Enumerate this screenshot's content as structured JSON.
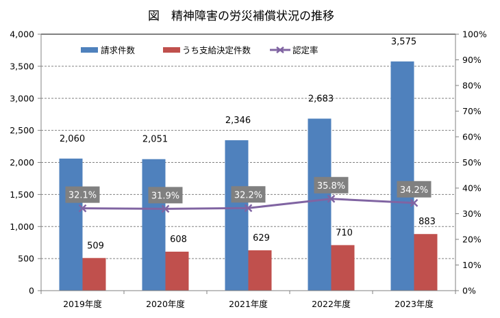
{
  "chart_data": {
    "type": "bar",
    "title": "図　精神障害の労災補償状況の推移",
    "categories": [
      "2019年度",
      "2020年度",
      "2021年度",
      "2022年度",
      "2023年度"
    ],
    "series": [
      {
        "name": "請求件数",
        "type": "bar",
        "axis": "left",
        "color": "#4F81BD",
        "values": [
          2060,
          2051,
          2346,
          2683,
          3575
        ],
        "labels": [
          "2,060",
          "2,051",
          "2,346",
          "2,683",
          "3,575"
        ]
      },
      {
        "name": "うち支給決定件数",
        "type": "bar",
        "axis": "left",
        "color": "#C0504D",
        "values": [
          509,
          608,
          629,
          710,
          883
        ],
        "labels": [
          "509",
          "608",
          "629",
          "710",
          "883"
        ]
      },
      {
        "name": "認定率",
        "type": "line",
        "axis": "right",
        "color": "#8064A2",
        "marker": "x",
        "values": [
          32.1,
          31.9,
          32.2,
          35.8,
          34.2
        ],
        "labels": [
          "32.1%",
          "31.9%",
          "32.2%",
          "35.8%",
          "34.2%"
        ]
      }
    ],
    "y_left": {
      "min": 0,
      "max": 4000,
      "step": 500,
      "ticks": [
        "0",
        "500",
        "1,000",
        "1,500",
        "2,000",
        "2,500",
        "3,000",
        "3,500",
        "4,000"
      ]
    },
    "y_right": {
      "min": 0,
      "max": 100,
      "step": 10,
      "ticks": [
        "0%",
        "10%",
        "20%",
        "30%",
        "40%",
        "50%",
        "60%",
        "70%",
        "80%",
        "90%",
        "100%"
      ]
    },
    "xlabel": "",
    "ylabel": "",
    "grid": "horizontal dashed",
    "legend": "top-center",
    "rate_label_bg": "#808080"
  }
}
